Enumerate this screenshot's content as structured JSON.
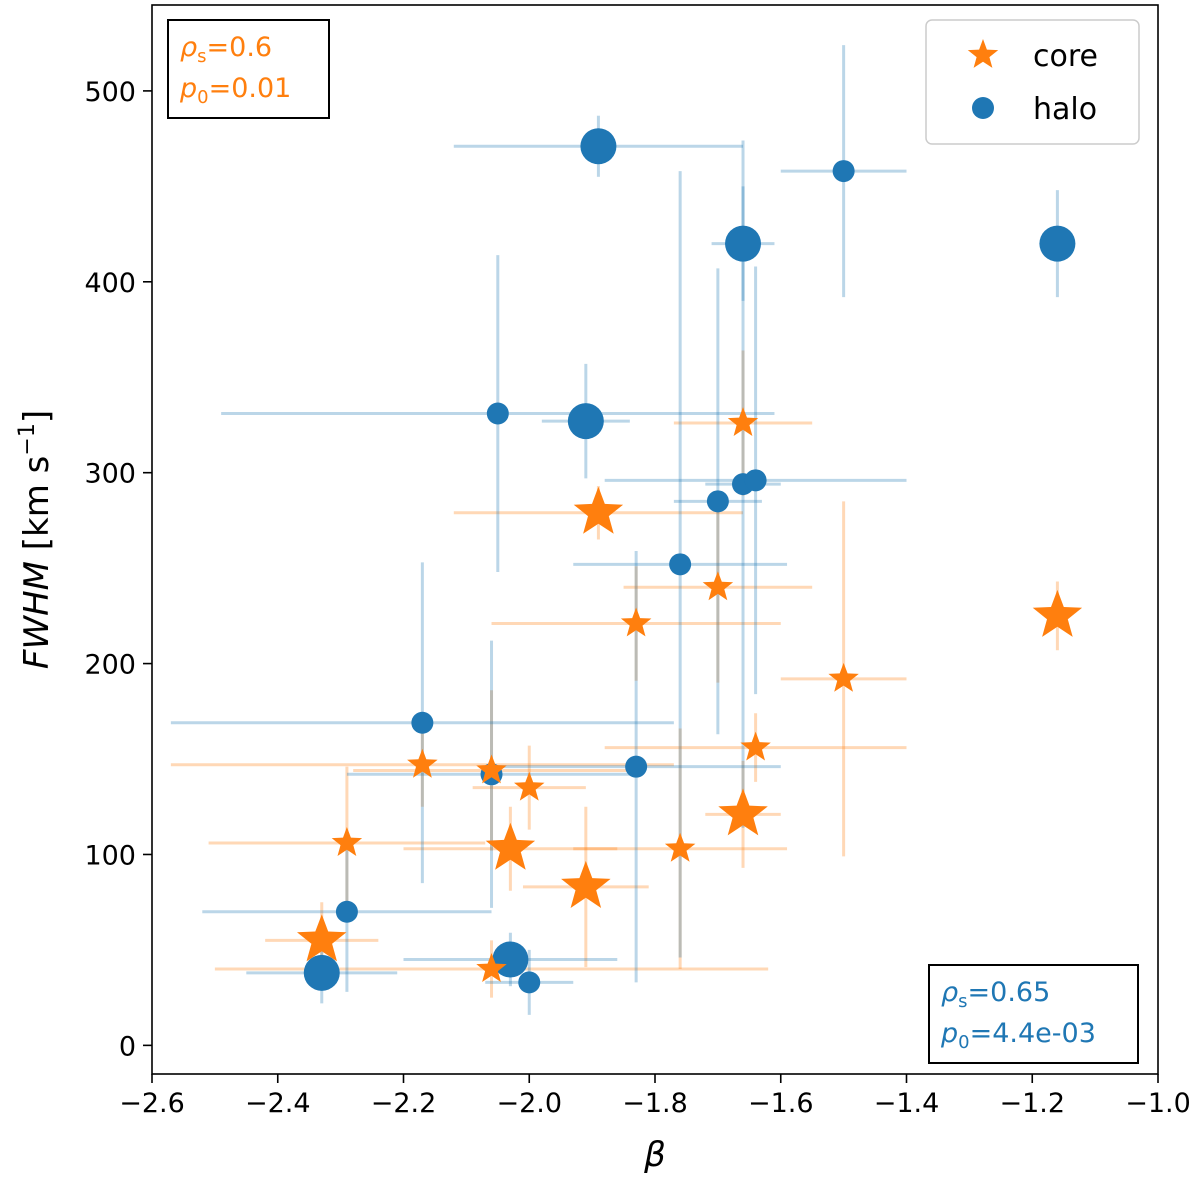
{
  "chart_data": {
    "type": "scatter",
    "xlabel": "β",
    "ylabel_main": "FWHM",
    "ylabel_unit_open": " [km s",
    "ylabel_exp": "−1",
    "ylabel_unit_close": "]",
    "xlim": [
      -2.6,
      -1.0
    ],
    "ylim": [
      -15,
      545
    ],
    "xticks": [
      -2.6,
      -2.4,
      -2.2,
      -2.0,
      -1.8,
      -1.6,
      -1.4,
      -1.2,
      -1.0
    ],
    "xtick_labels": [
      "−2.6",
      "−2.4",
      "−2.2",
      "−2.0",
      "−1.8",
      "−1.6",
      "−1.4",
      "−1.2",
      "−1.0"
    ],
    "yticks": [
      0,
      100,
      200,
      300,
      400,
      500
    ],
    "ytick_labels": [
      "0",
      "100",
      "200",
      "300",
      "400",
      "500"
    ],
    "legend": {
      "location": "top-right",
      "core": "core",
      "halo": "halo"
    },
    "series": [
      {
        "name": "core",
        "marker": "star",
        "color": "#ff7f0e",
        "points": [
          {
            "x": -2.33,
            "y": 55,
            "xerr": 0.09,
            "yerr": 20,
            "size": "large"
          },
          {
            "x": -2.29,
            "y": 106,
            "xerr": 0.22,
            "yerr": 40,
            "size": "small"
          },
          {
            "x": -2.17,
            "y": 147,
            "xerr": 0.4,
            "yerr": 22,
            "size": "small"
          },
          {
            "x": -2.06,
            "y": 40,
            "xerr": 0.44,
            "yerr": 15,
            "size": "small"
          },
          {
            "x": -2.06,
            "y": 144,
            "xerr": 0.22,
            "yerr": 42,
            "size": "small"
          },
          {
            "x": -2.03,
            "y": 103,
            "xerr": 0.17,
            "yerr": 22,
            "size": "large"
          },
          {
            "x": -2.0,
            "y": 135,
            "xerr": 0.09,
            "yerr": 22,
            "size": "small"
          },
          {
            "x": -1.91,
            "y": 83,
            "xerr": 0.1,
            "yerr": 42,
            "size": "large"
          },
          {
            "x": -1.89,
            "y": 279,
            "xerr": 0.23,
            "yerr": 14,
            "size": "large"
          },
          {
            "x": -1.83,
            "y": 221,
            "xerr": 0.23,
            "yerr": 30,
            "size": "small"
          },
          {
            "x": -1.76,
            "y": 103,
            "xerr": 0.17,
            "yerr": 63,
            "size": "small"
          },
          {
            "x": -1.7,
            "y": 240,
            "xerr": 0.15,
            "yerr": 50,
            "size": "small"
          },
          {
            "x": -1.66,
            "y": 121,
            "xerr": 0.06,
            "yerr": 28,
            "size": "large"
          },
          {
            "x": -1.66,
            "y": 326,
            "xerr": 0.11,
            "yerr": 38,
            "size": "small"
          },
          {
            "x": -1.64,
            "y": 156,
            "xerr": 0.24,
            "yerr": 18,
            "size": "small"
          },
          {
            "x": -1.5,
            "y": 192,
            "xerr": 0.1,
            "yerr": 93,
            "size": "small"
          },
          {
            "x": -1.16,
            "y": 225,
            "xerr": 0.0,
            "yerr": 18,
            "size": "large"
          }
        ]
      },
      {
        "name": "halo",
        "marker": "circle",
        "color": "#1f77b4",
        "points": [
          {
            "x": -2.33,
            "y": 38,
            "xerr": 0.12,
            "yerr": 16,
            "size": "large"
          },
          {
            "x": -2.29,
            "y": 70,
            "xerr": 0.23,
            "yerr": 42,
            "size": "small"
          },
          {
            "x": -2.17,
            "y": 169,
            "xerr": 0.4,
            "yerr": 84,
            "size": "small"
          },
          {
            "x": -2.06,
            "y": 142,
            "xerr": 0.23,
            "yerr": 70,
            "size": "small"
          },
          {
            "x": -2.05,
            "y": 331,
            "xerr": 0.44,
            "yerr": 83,
            "size": "small"
          },
          {
            "x": -2.03,
            "y": 45,
            "xerr": 0.17,
            "yerr": 14,
            "size": "large"
          },
          {
            "x": -2.0,
            "y": 33,
            "xerr": 0.07,
            "yerr": 17,
            "size": "small"
          },
          {
            "x": -1.91,
            "y": 327,
            "xerr": 0.07,
            "yerr": 30,
            "size": "large"
          },
          {
            "x": -1.89,
            "y": 471,
            "xerr": 0.23,
            "yerr": 16,
            "size": "large"
          },
          {
            "x": -1.83,
            "y": 146,
            "xerr": 0.23,
            "yerr": 113,
            "size": "small"
          },
          {
            "x": -1.76,
            "y": 252,
            "xerr": 0.17,
            "yerr": 206,
            "size": "small"
          },
          {
            "x": -1.7,
            "y": 285,
            "xerr": 0.07,
            "yerr": 122,
            "size": "small"
          },
          {
            "x": -1.66,
            "y": 420,
            "xerr": 0.05,
            "yerr": 30,
            "size": "large"
          },
          {
            "x": -1.66,
            "y": 294,
            "xerr": 0.06,
            "yerr": 180,
            "size": "small"
          },
          {
            "x": -1.64,
            "y": 296,
            "xerr": 0.24,
            "yerr": 112,
            "size": "small"
          },
          {
            "x": -1.5,
            "y": 458,
            "xerr": 0.1,
            "yerr": 66,
            "size": "small"
          },
          {
            "x": -1.16,
            "y": 420,
            "xerr": 0.0,
            "yerr": 28,
            "size": "large"
          }
        ]
      }
    ],
    "annotations": [
      {
        "id": "core-stats",
        "location": "top-left",
        "color": "#ff7f0e",
        "rho_label": "ρ",
        "rho_sub": "s",
        "rho_value": "=0.6",
        "p_label": "p",
        "p_sub": "0",
        "p_value": "=0.01"
      },
      {
        "id": "halo-stats",
        "location": "bottom-right",
        "color": "#1f77b4",
        "rho_label": "ρ",
        "rho_sub": "s",
        "rho_value": "=0.65",
        "p_label": "p",
        "p_sub": "0",
        "p_value": "=4.4e-03"
      }
    ]
  }
}
